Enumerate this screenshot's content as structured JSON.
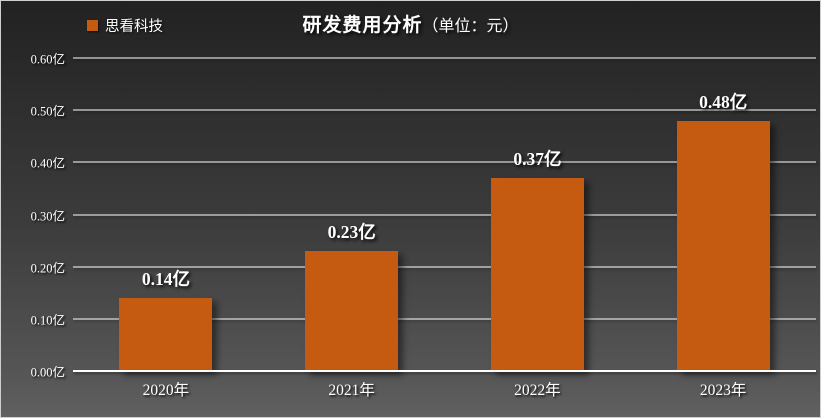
{
  "title": {
    "main": "研发费用分析",
    "unit": "（单位：元）"
  },
  "legend": {
    "label": "思看科技"
  },
  "colors": {
    "bar": "#C55A11",
    "text": "#ffffff",
    "gridline": "#ffffff",
    "background_top": "#222222",
    "background_bottom": "#606060"
  },
  "chart_data": {
    "type": "bar",
    "title": "研发费用分析（单位：元）",
    "series_name": "思看科技",
    "categories": [
      "2020年",
      "2021年",
      "2022年",
      "2023年"
    ],
    "values": [
      0.14,
      0.23,
      0.37,
      0.48
    ],
    "value_labels": [
      "0.14亿",
      "0.23亿",
      "0.37亿",
      "0.48亿"
    ],
    "xlabel": "",
    "ylabel": "",
    "ylim": [
      0,
      0.6
    ],
    "ytick_interval": 0.1,
    "ytick_labels_bottom_to_top": [
      "0.00亿",
      "0.10亿",
      "0.20亿",
      "0.30亿",
      "0.40亿",
      "0.50亿",
      "0.60亿"
    ],
    "grid": true,
    "legend_position": "top-left",
    "bar_color": "#C55A11"
  }
}
